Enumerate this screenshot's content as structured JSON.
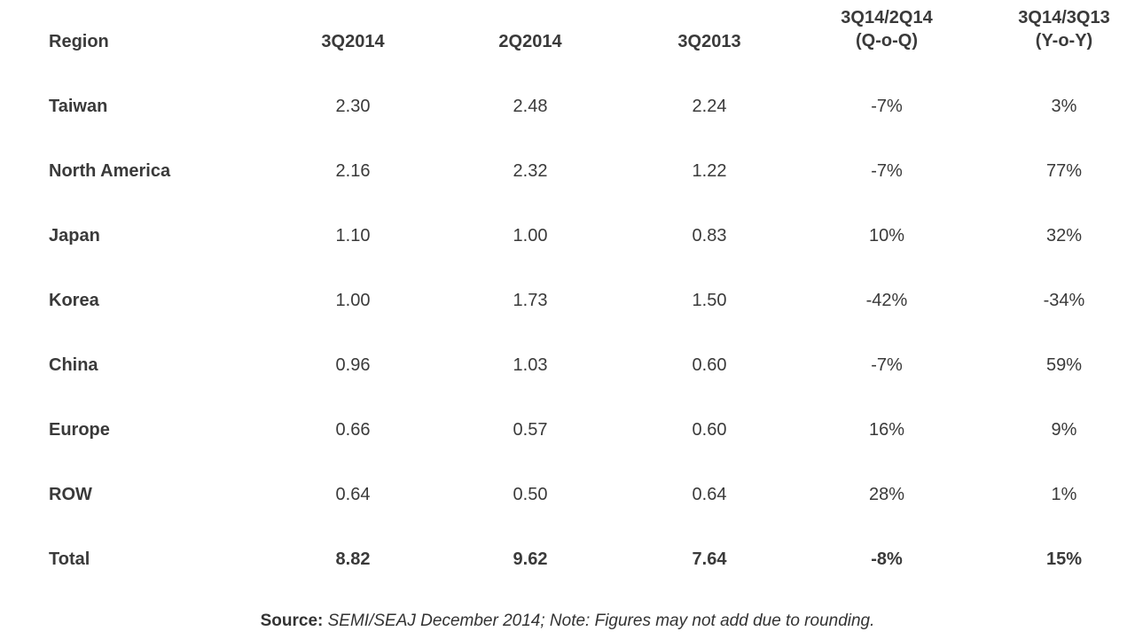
{
  "table": {
    "header": [
      "Region",
      "3Q2014",
      "2Q2014",
      "3Q2013",
      [
        "3Q14/2Q14",
        "(Q-o-Q)"
      ],
      [
        "3Q14/3Q13",
        "(Y-o-Y)"
      ]
    ],
    "rows": [
      [
        "Taiwan",
        "2.30",
        "2.48",
        "2.24",
        "-7%",
        "3%"
      ],
      [
        "North America",
        "2.16",
        "2.32",
        "1.22",
        "-7%",
        "77%"
      ],
      [
        "Japan",
        "1.10",
        "1.00",
        "0.83",
        "10%",
        "32%"
      ],
      [
        "Korea",
        "1.00",
        "1.73",
        "1.50",
        "-42%",
        "-34%"
      ],
      [
        "China",
        "0.96",
        "1.03",
        "0.60",
        "-7%",
        "59%"
      ],
      [
        "Europe",
        "0.66",
        "0.57",
        "0.60",
        "16%",
        "9%"
      ],
      [
        "ROW",
        "0.64",
        "0.50",
        "0.64",
        "28%",
        "1%"
      ],
      [
        "Total",
        "8.82",
        "9.62",
        "7.64",
        "-8%",
        "15%"
      ]
    ]
  },
  "footer": {
    "label": "Source:",
    "text": "SEMI/SEAJ December 2014; Note: Figures may not add due to rounding."
  }
}
